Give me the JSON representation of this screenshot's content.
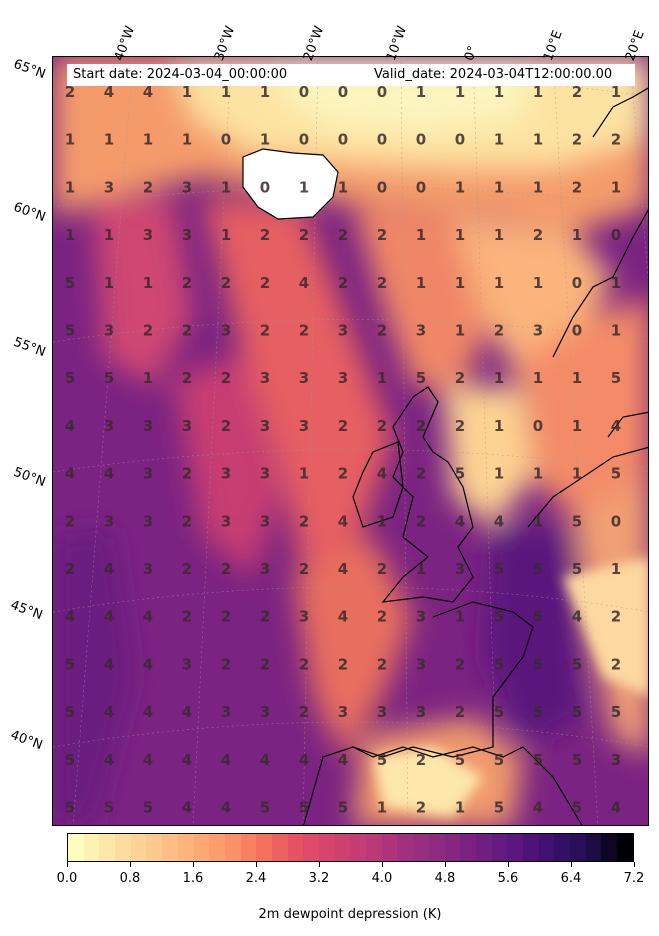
{
  "header": {
    "start_date": "Start date: 2024-03-04_00:00:00",
    "valid_date": "Valid_date: 2024-03-04T12:00:00.00"
  },
  "longitude_labels": [
    "40°W",
    "30°W",
    "20°W",
    "10°W",
    "0°",
    "10°E",
    "20°E"
  ],
  "latitude_labels": [
    "65°N",
    "60°N",
    "55°N",
    "50°N",
    "45°N",
    "40°N"
  ],
  "colorbar": {
    "title": "2m dewpoint depression (K)",
    "ticks": [
      "0.0",
      "0.8",
      "1.6",
      "2.4",
      "3.2",
      "4.0",
      "4.8",
      "5.6",
      "6.4",
      "7.2"
    ],
    "colormap": "magma_r",
    "range": [
      0,
      7.2
    ],
    "colors": [
      "#fcfdbf",
      "#fde4a5",
      "#fecc8f",
      "#feb47b",
      "#fd9a6a",
      "#f8765c",
      "#e65164",
      "#d3436e",
      "#c03a76",
      "#a3307e",
      "#8c2981",
      "#721f81",
      "#5c167f",
      "#3b0f70",
      "#220f4d",
      "#000004"
    ]
  },
  "grid_values": [
    [
      2,
      4,
      4,
      1,
      1,
      1,
      0,
      0,
      0,
      1,
      1,
      1,
      1,
      2,
      1
    ],
    [
      1,
      1,
      1,
      1,
      0,
      1,
      0,
      0,
      0,
      0,
      0,
      1,
      1,
      2,
      2
    ],
    [
      1,
      3,
      2,
      3,
      1,
      0,
      1,
      1,
      0,
      0,
      1,
      1,
      1,
      2,
      1
    ],
    [
      1,
      1,
      3,
      3,
      1,
      2,
      2,
      2,
      2,
      1,
      1,
      1,
      2,
      1,
      0
    ],
    [
      5,
      1,
      1,
      2,
      2,
      2,
      4,
      2,
      2,
      1,
      1,
      1,
      1,
      0,
      1
    ],
    [
      5,
      3,
      2,
      2,
      3,
      2,
      2,
      3,
      2,
      3,
      1,
      2,
      3,
      0,
      1
    ],
    [
      5,
      5,
      1,
      2,
      2,
      3,
      3,
      3,
      1,
      5,
      2,
      1,
      1,
      1,
      5
    ],
    [
      4,
      3,
      3,
      3,
      2,
      3,
      3,
      2,
      2,
      2,
      2,
      1,
      0,
      1,
      4
    ],
    [
      4,
      4,
      3,
      2,
      3,
      3,
      1,
      2,
      4,
      2,
      5,
      1,
      1,
      1,
      5
    ],
    [
      2,
      3,
      3,
      2,
      3,
      3,
      2,
      4,
      1,
      2,
      4,
      4,
      1,
      5,
      0
    ],
    [
      2,
      4,
      3,
      2,
      2,
      3,
      2,
      4,
      2,
      1,
      3,
      5,
      5,
      5,
      1
    ],
    [
      4,
      4,
      4,
      2,
      2,
      2,
      3,
      4,
      2,
      3,
      1,
      5,
      5,
      4,
      2
    ],
    [
      5,
      4,
      4,
      3,
      2,
      2,
      2,
      2,
      2,
      3,
      2,
      5,
      5,
      5,
      2
    ],
    [
      5,
      4,
      4,
      4,
      3,
      3,
      2,
      3,
      3,
      3,
      2,
      5,
      5,
      5,
      5
    ],
    [
      5,
      4,
      4,
      4,
      4,
      4,
      4,
      4,
      5,
      2,
      5,
      5,
      5,
      5,
      3
    ],
    [
      5,
      5,
      5,
      4,
      4,
      5,
      5,
      5,
      1,
      2,
      1,
      5,
      4,
      5,
      4
    ]
  ]
}
